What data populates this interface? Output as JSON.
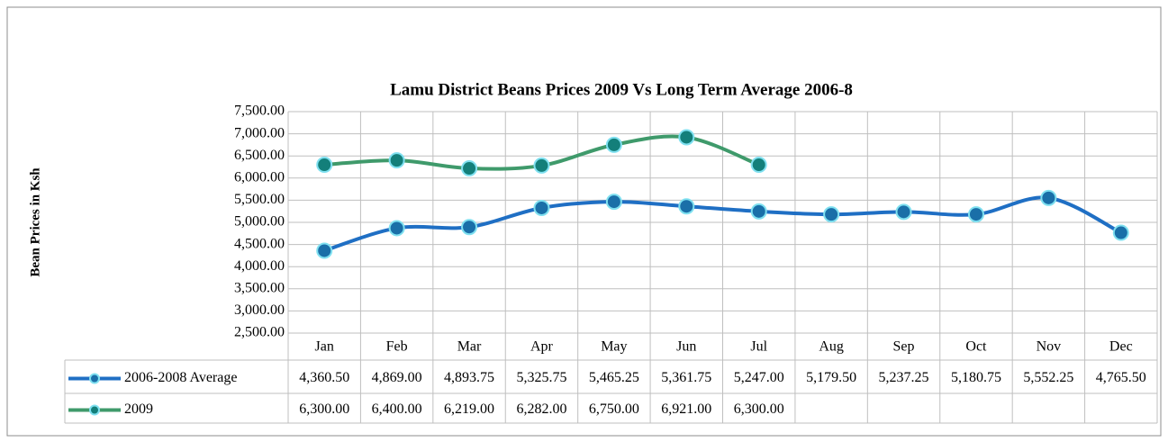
{
  "chart_data": {
    "type": "line",
    "title": "Lamu District Beans Prices 2009 Vs Long Term Average 2006-8",
    "y_label": "Bean Prices in Ksh",
    "categories": [
      "Jan",
      "Feb",
      "Mar",
      "Apr",
      "May",
      "Jun",
      "Jul",
      "Aug",
      "Sep",
      "Oct",
      "Nov",
      "Dec"
    ],
    "series": [
      {
        "name": "2006-2008 Average",
        "color": "#1f6fc4",
        "marker_color": "#1a6fa8",
        "values": [
          4360.5,
          4869,
          4893.75,
          5325.75,
          5465.25,
          5361.75,
          5247,
          5179.5,
          5237.25,
          5180.75,
          5552.25,
          4765.5
        ],
        "value_labels": [
          "4,360.50",
          "4,869.00",
          "4,893.75",
          "5,325.75",
          "5,465.25",
          "5,361.75",
          "5,247.00",
          "5,179.50",
          "5,237.25",
          "5,180.75",
          "5,552.25",
          "4,765.50"
        ]
      },
      {
        "name": "2009",
        "color": "#3f9a6b",
        "marker_color": "#137f7a",
        "values": [
          6300,
          6400,
          6219,
          6282,
          6750,
          6921,
          6300,
          null,
          null,
          null,
          null,
          null
        ],
        "value_labels": [
          "6,300.00",
          "6,400.00",
          "6,219.00",
          "6,282.00",
          "6,750.00",
          "6,921.00",
          "6,300.00",
          null,
          null,
          null,
          null,
          null
        ]
      }
    ],
    "ylim": [
      2500,
      7500
    ],
    "yticks": [
      {
        "value": 2500,
        "label": "2,500.00"
      },
      {
        "value": 3000,
        "label": "3,000.00"
      },
      {
        "value": 3500,
        "label": "3,500.00"
      },
      {
        "value": 4000,
        "label": "4,000.00"
      },
      {
        "value": 4500,
        "label": "4,500.00"
      },
      {
        "value": 5000,
        "label": "5,000.00"
      },
      {
        "value": 5500,
        "label": "5,500.00"
      },
      {
        "value": 6000,
        "label": "6,000.00"
      },
      {
        "value": 6500,
        "label": "6,500.00"
      },
      {
        "value": 7000,
        "label": "7,000.00"
      },
      {
        "value": 7500,
        "label": "7,500.00"
      }
    ],
    "grid": true
  }
}
